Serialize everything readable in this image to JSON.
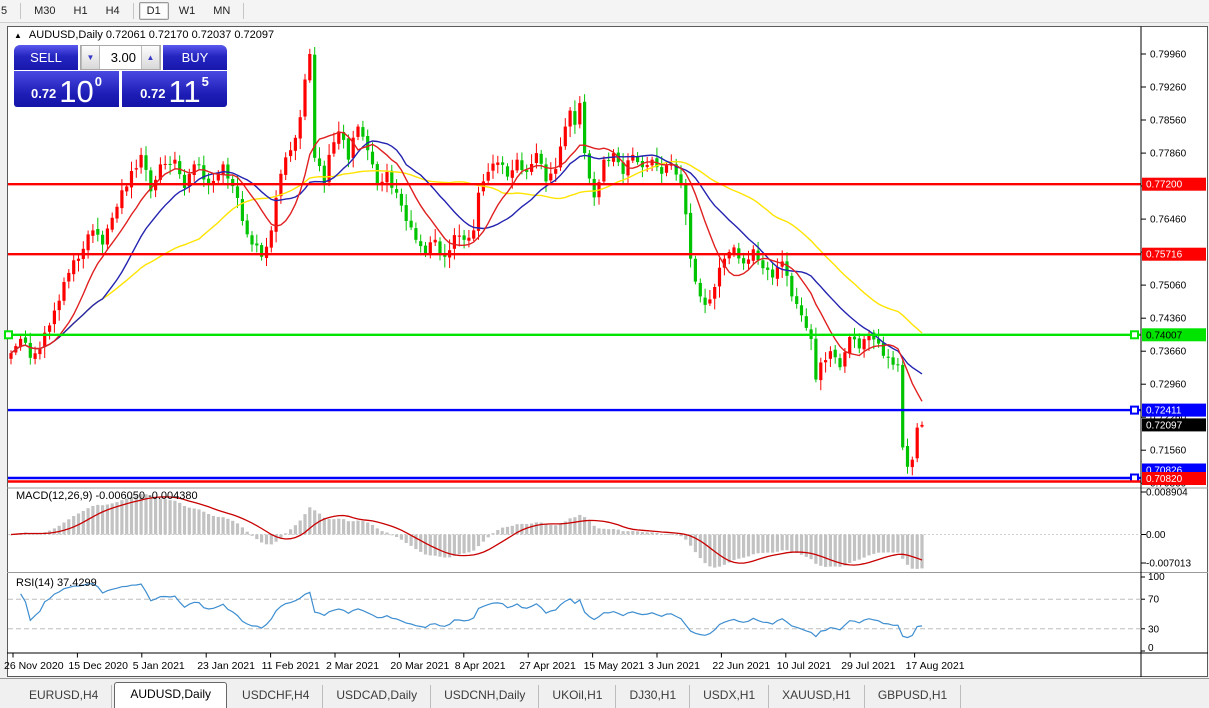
{
  "toolbar": {
    "groups": [
      [
        "5"
      ],
      [
        "M30",
        "H1",
        "H4"
      ],
      [
        "D1",
        "W1",
        "MN"
      ]
    ],
    "active": "D1"
  },
  "chart_header": {
    "title": "AUDUSD,Daily  0.72061 0.72170 0.72037 0.72097",
    "collapse_icon": "up-triangle"
  },
  "trade_panel": {
    "sell_label": "SELL",
    "buy_label": "BUY",
    "volume": "3.00",
    "sell_price": {
      "prefix": "0.72",
      "big": "10",
      "sup": "0"
    },
    "buy_price": {
      "prefix": "0.72",
      "big": "11",
      "sup": "5"
    }
  },
  "chart_data": {
    "type": "candlestick",
    "symbol": "AUDUSD",
    "timeframe": "Daily",
    "ohlc_current": {
      "open": 0.72061,
      "high": 0.7217,
      "low": 0.72037,
      "close": 0.72097
    },
    "bar_count": 190,
    "up_color": "#ff0000",
    "down_color": "#00c400",
    "close_anchors": [
      [
        0,
        0.7362
      ],
      [
        2,
        0.7392
      ],
      [
        4,
        0.7352
      ],
      [
        6,
        0.7372
      ],
      [
        9,
        0.7452
      ],
      [
        12,
        0.7532
      ],
      [
        14,
        0.7562
      ],
      [
        17,
        0.7622
      ],
      [
        19,
        0.7592
      ],
      [
        22,
        0.7672
      ],
      [
        25,
        0.7748
      ],
      [
        27,
        0.7782
      ],
      [
        29,
        0.7705
      ],
      [
        31,
        0.7762
      ],
      [
        34,
        0.7772
      ],
      [
        36,
        0.7712
      ],
      [
        38,
        0.7762
      ],
      [
        41,
        0.7722
      ],
      [
        44,
        0.7762
      ],
      [
        46,
        0.7716
      ],
      [
        48,
        0.7642
      ],
      [
        50,
        0.7592
      ],
      [
        52,
        0.7566
      ],
      [
        54,
        0.7622
      ],
      [
        56,
        0.7742
      ],
      [
        58,
        0.7792
      ],
      [
        60,
        0.7862
      ],
      [
        61,
        0.7942
      ],
      [
        62,
        0.7996
      ],
      [
        63,
        0.7776
      ],
      [
        65,
        0.7722
      ],
      [
        66,
        0.7782
      ],
      [
        68,
        0.7832
      ],
      [
        70,
        0.7772
      ],
      [
        72,
        0.7842
      ],
      [
        74,
        0.7792
      ],
      [
        76,
        0.7722
      ],
      [
        78,
        0.7746
      ],
      [
        80,
        0.7702
      ],
      [
        82,
        0.7642
      ],
      [
        84,
        0.7602
      ],
      [
        86,
        0.7572
      ],
      [
        88,
        0.7602
      ],
      [
        90,
        0.7566
      ],
      [
        92,
        0.7612
      ],
      [
        94,
        0.7602
      ],
      [
        96,
        0.7622
      ],
      [
        97,
        0.7702
      ],
      [
        99,
        0.7746
      ],
      [
        101,
        0.7766
      ],
      [
        103,
        0.7736
      ],
      [
        105,
        0.7772
      ],
      [
        107,
        0.7746
      ],
      [
        109,
        0.7786
      ],
      [
        111,
        0.7726
      ],
      [
        113,
        0.7752
      ],
      [
        115,
        0.7842
      ],
      [
        116,
        0.7876
      ],
      [
        117,
        0.7846
      ],
      [
        118,
        0.7892
      ],
      [
        119,
        0.7786
      ],
      [
        120,
        0.7732
      ],
      [
        121,
        0.7692
      ],
      [
        123,
        0.7772
      ],
      [
        125,
        0.7786
      ],
      [
        127,
        0.7742
      ],
      [
        129,
        0.7782
      ],
      [
        131,
        0.7756
      ],
      [
        133,
        0.7772
      ],
      [
        135,
        0.7742
      ],
      [
        137,
        0.7762
      ],
      [
        139,
        0.7722
      ],
      [
        140,
        0.7656
      ],
      [
        141,
        0.7562
      ],
      [
        143,
        0.7482
      ],
      [
        144,
        0.7464
      ],
      [
        146,
        0.7502
      ],
      [
        148,
        0.7562
      ],
      [
        150,
        0.7586
      ],
      [
        152,
        0.7552
      ],
      [
        154,
        0.7582
      ],
      [
        156,
        0.7542
      ],
      [
        158,
        0.7522
      ],
      [
        160,
        0.7556
      ],
      [
        162,
        0.7482
      ],
      [
        164,
        0.7442
      ],
      [
        166,
        0.7392
      ],
      [
        167,
        0.7306
      ],
      [
        168,
        0.7342
      ],
      [
        170,
        0.7366
      ],
      [
        172,
        0.7332
      ],
      [
        174,
        0.7396
      ],
      [
        176,
        0.7372
      ],
      [
        178,
        0.7402
      ],
      [
        180,
        0.7382
      ],
      [
        182,
        0.7352
      ],
      [
        184,
        0.7338
      ],
      [
        185,
        0.7162
      ],
      [
        186,
        0.7121
      ],
      [
        187,
        0.7136
      ],
      [
        188,
        0.7204
      ],
      [
        189,
        0.72097
      ]
    ],
    "extremes": {
      "peak_index": 62,
      "peak_high": 0.8007,
      "trough_index": 186,
      "trough_low": 0.7106
    },
    "ma_lines": [
      {
        "name": "fast",
        "period": 10,
        "color": "#e02020"
      },
      {
        "name": "mid",
        "period": 20,
        "color": "#2323b0"
      },
      {
        "name": "slow",
        "period": 40,
        "color": "#ffe400"
      }
    ],
    "hlines": [
      {
        "price": 0.772,
        "label": "0.77200",
        "color": "#ff0000",
        "text_color": "#ffffff",
        "handles": false,
        "left_handle": false
      },
      {
        "price": 0.75716,
        "label": "0.75716",
        "color": "#ff0000",
        "text_color": "#ffffff",
        "handles": false,
        "left_handle": false
      },
      {
        "price": 0.74007,
        "label": "0.74007",
        "color": "#00e400",
        "text_color": "#000000",
        "handles": true,
        "left_handle": true
      },
      {
        "price": 0.72411,
        "label": "0.72411",
        "color": "#0000ff",
        "text_color": "#ffffff",
        "handles": true,
        "left_handle": false
      },
      {
        "price": 0.70826,
        "label": "0.70826",
        "color": "#0000ff",
        "text_color": "#ffffff",
        "handles": true,
        "left_handle": false
      },
      {
        "price": 0.7082,
        "label": "0.70820",
        "color": "#ff0000",
        "text_color": "#ffffff",
        "handles": false,
        "left_handle": false
      }
    ],
    "current_price_label": {
      "price": 0.72097,
      "label": "0.72097",
      "bg": "#000000",
      "text_color": "#ffffff"
    },
    "y_axis": {
      "ticks": [
        "0.79960",
        "0.79260",
        "0.78560",
        "0.77860",
        "0.77160",
        "0.76460",
        "0.75760",
        "0.75060",
        "0.74360",
        "0.73660",
        "0.72960",
        "0.72260",
        "0.71560",
        "0.70860"
      ]
    },
    "x_axis": {
      "labels": [
        "26 Nov 2020",
        "15 Dec 2020",
        "5 Jan 2021",
        "23 Jan 2021",
        "11 Feb 2021",
        "2 Mar 2021",
        "20 Mar 2021",
        "8 Apr 2021",
        "27 Apr 2021",
        "15 May 2021",
        "3 Jun 2021",
        "22 Jun 2021",
        "10 Jul 2021",
        "29 Jul 2021",
        "17 Aug 2021"
      ]
    },
    "macd": {
      "label": "MACD(12,26,9) -0.006050 -0.004380",
      "params": [
        12,
        26,
        9
      ],
      "values_text": [
        "-0.006050",
        "-0.004380"
      ],
      "axis": [
        "0.008904",
        "0.00",
        "-0.007013"
      ],
      "hist_color": "#c2c2c2",
      "signal_color": "#c80000"
    },
    "rsi": {
      "label": "RSI(14) 37.4299",
      "period": 14,
      "value": 37.4299,
      "axis": [
        "100",
        "70",
        "30",
        "0"
      ],
      "levels": [
        70,
        30
      ],
      "color": "#3e8ed0"
    }
  },
  "tabs": {
    "items": [
      "EURUSD,H4",
      "AUDUSD,Daily",
      "USDCHF,H4",
      "USDCAD,Daily",
      "USDCNH,Daily",
      "UKOil,H1",
      "DJ30,H1",
      "USDX,H1",
      "XAUUSD,H1",
      "GBPUSD,H1"
    ],
    "active_index": 1
  }
}
